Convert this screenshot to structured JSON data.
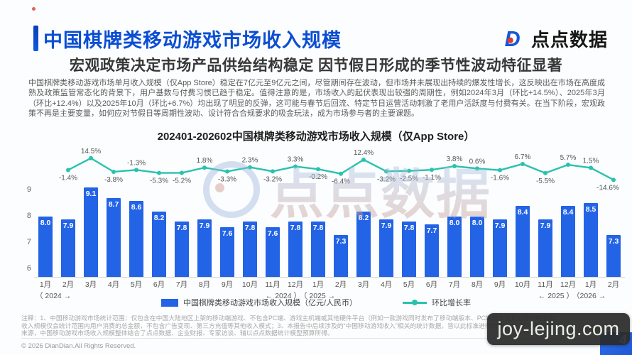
{
  "header": {
    "title": "中国棋牌类移动游戏市场收入规模",
    "brand": "点点数据"
  },
  "subtitle": "宏观政策决定市场产品供给结构稳定 因节假日形成的季节性波动特征显著",
  "intro": "中国棋牌类移动游戏市场单月收入规模（仅App Store）稳定在7亿元至9亿元之间，尽管期间存在波动，但市场并未展现出持续的爆发性增长，这反映出在市场在高度成熟及政策监管常态化的背景下，用户基数与付费习惯已趋于稳定。值得注意的是，市场收入的起伏表现出较强的周期性，例如2024年3月（环比+14.5%）、2025年3月（环比+12.4%）以及2025年10月（环比+6.7%）均出现了明显的反弹，这可能与春节后回流、特定节日运营活动刺激了老用户活跃度与付费有关。在当下阶段，宏观政策不再是主要变量，如何应对节假日等周期性波动、设计符合合规要求的吸金玩法，成为市场参与者的主要课题。",
  "chart_data": {
    "type": "bar",
    "title": "202401-202602中国棋牌类移动游戏市场收入规模（仅App Store）",
    "categories": [
      "1月",
      "2月",
      "3月",
      "4月",
      "5月",
      "6月",
      "7月",
      "8月",
      "9月",
      "10月",
      "11月",
      "12月",
      "1月",
      "2月",
      "3月",
      "4月",
      "5月",
      "6月",
      "7月",
      "8月",
      "9月",
      "10月",
      "11月",
      "12月",
      "1月",
      "2月"
    ],
    "year_markers": [
      {
        "index": 0,
        "text": "（ 2024 →"
      },
      {
        "index": 11,
        "text": "← 2024 ）"
      },
      {
        "index": 12,
        "text": "（ 2025 →"
      },
      {
        "index": 23,
        "text": "← 2025 ）"
      },
      {
        "index": 24,
        "text": "（2026 →"
      }
    ],
    "series": [
      {
        "name": "中国棋牌类移动游戏市场收入规模（亿元/人民币）",
        "type": "bar",
        "color": "#2363e6",
        "values": [
          8.0,
          7.9,
          9.1,
          8.7,
          8.6,
          8.2,
          7.8,
          7.9,
          7.6,
          7.8,
          7.6,
          7.8,
          7.8,
          7.3,
          8.2,
          7.9,
          7.8,
          7.7,
          8.0,
          8.0,
          7.9,
          8.4,
          7.9,
          8.4,
          8.5,
          7.3
        ]
      },
      {
        "name": "环比增长率",
        "type": "line",
        "color": "#29c2af",
        "values": [
          null,
          -1.4,
          14.5,
          -3.8,
          -1.3,
          -5.3,
          -5.2,
          1.8,
          -3.3,
          2.3,
          -3.2,
          3.3,
          -0.2,
          -6.4,
          12.4,
          -3.2,
          -2.5,
          -1.1,
          3.8,
          0.6,
          -1.6,
          6.7,
          -5.5,
          5.7,
          1.5,
          -14.6
        ],
        "labels_above": [
          2,
          4,
          7,
          9,
          11,
          14,
          18,
          19,
          21,
          23,
          24
        ]
      }
    ],
    "yticks": [
      9,
      8,
      7,
      6
    ],
    "baseline_value": 5.7,
    "grid": false,
    "legend_position": "bottom"
  },
  "watermarks": {
    "center_brand": "点点数据",
    "corner": "joy-lejing.com",
    "corner_glyph": "4"
  },
  "notes": [
    "注释：1、中国移动游戏市场统计范围：仅包含在中国大陆地区上架的移动端游戏、不包含PC端、游戏主机端或其他硬件平台（例如一款游戏同时发布了移动端版本、PC端版本或其他客户端版本，",
    "收入规模仅会统计范围内用户消费的总金额，不包含广告变现、第三方充值等其他收入模式；3、本报告中后续涉及的“中国移动游戏收入”相关的统计数据，皆以此标准进行统计；4、部分数据的",
    "来源，中国移动游戏市场收入规模整体结合了点点数据、企业财报、专家访谈、辅以点点数据统计模型预算所得。"
  ],
  "copyright": "© 2026 DianDian.All Rights Reserved.",
  "colors": {
    "title_blue": "#0b4ed2",
    "bar_blue": "#2363e6",
    "line_teal": "#29c2af",
    "brand_red": "#e0392f"
  }
}
